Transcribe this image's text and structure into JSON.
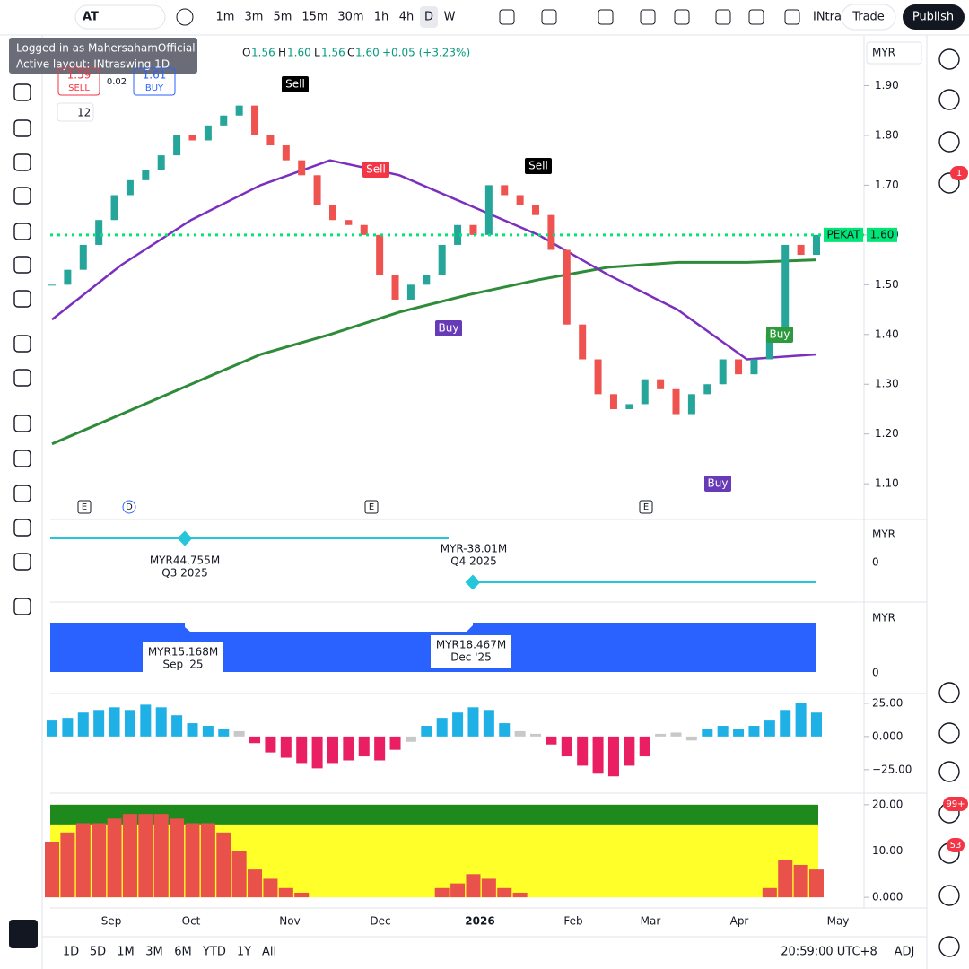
{
  "toolbar": {
    "symbol": "AT",
    "intervals": [
      "1m",
      "3m",
      "5m",
      "15m",
      "30m",
      "1h",
      "4h",
      "D",
      "W"
    ],
    "layout": "INtra",
    "trade": "Trade",
    "publish": "Publish"
  },
  "login": {
    "user": "Logged in as MahersahamOfficial",
    "layout": "Active layout: INtraswing 1D"
  },
  "legend": {
    "o_label": "O",
    "o": "1.56",
    "h_label": "H",
    "h": "1.60",
    "l_label": "L",
    "l": "1.56",
    "c_label": "C",
    "c": "1.60",
    "change": "+0.05 (+3.23%)",
    "sell_price": "1.59",
    "sell": "SELL",
    "spread": "0.02",
    "buy_price": "1.61",
    "buy": "BUY",
    "indicator_count": "12"
  },
  "chart_data": {
    "type": "candlestick",
    "currency": "MYR",
    "up_color": "#26a69a",
    "down_color": "#ef5350",
    "closes": [
      1.5,
      1.53,
      1.58,
      1.63,
      1.68,
      1.71,
      1.73,
      1.76,
      1.8,
      1.79,
      1.82,
      1.84,
      1.86,
      1.8,
      1.78,
      1.75,
      1.72,
      1.66,
      1.63,
      1.62,
      1.6,
      1.52,
      1.47,
      1.5,
      1.52,
      1.58,
      1.62,
      1.6,
      1.7,
      1.68,
      1.66,
      1.64,
      1.57,
      1.42,
      1.35,
      1.28,
      1.25,
      1.26,
      1.31,
      1.29,
      1.24,
      1.28,
      1.3,
      1.35,
      1.32,
      1.35,
      1.4,
      1.58,
      1.56,
      1.6
    ],
    "ma200": [
      1.18,
      1.24,
      1.3,
      1.36,
      1.4,
      1.445,
      1.48,
      1.51,
      1.535,
      1.545,
      1.545,
      1.55
    ],
    "ma200_color": "#2e8b3a",
    "ma50": [
      1.43,
      1.54,
      1.63,
      1.7,
      1.75,
      1.72,
      1.66,
      1.6,
      1.52,
      1.45,
      1.35,
      1.36
    ],
    "ma50_color": "#7b2fbf",
    "ylim": [
      1.03,
      2.0
    ],
    "yticks": [
      {
        "value": 1.1,
        "label": "1.10"
      },
      {
        "value": 1.2,
        "label": "1.20"
      },
      {
        "value": 1.3,
        "label": "1.30"
      },
      {
        "value": 1.4,
        "label": "1.40"
      },
      {
        "value": 1.5,
        "label": "1.50"
      },
      {
        "value": 1.6,
        "label": "1.60"
      },
      {
        "value": 1.7,
        "label": "1.70"
      },
      {
        "value": 1.8,
        "label": "1.80"
      },
      {
        "value": 1.9,
        "label": "1.90"
      }
    ],
    "last_label": "PEKAT",
    "last_value": {
      "value": 1.6,
      "label": "1.60"
    },
    "signals": [
      "Sell",
      "Sell",
      "Sell",
      "Buy",
      "Buy",
      "Buy"
    ],
    "markers": [
      "E",
      "D",
      "E",
      "E"
    ],
    "x_labels": [
      "Sep",
      "Oct",
      "Nov",
      "Dec",
      "2026",
      "Feb",
      "Mar",
      "Apr",
      "May"
    ]
  },
  "earnings": {
    "currency": "MYR",
    "zero": "0",
    "points": [
      {
        "value": "MYR44.755M",
        "period": "Q3 2025"
      },
      {
        "value": "MYR-38.01M",
        "period": "Q4 2025"
      }
    ]
  },
  "revenue": {
    "currency": "MYR",
    "zero": "0",
    "points": [
      {
        "value": "MYR15.168M",
        "period": "Sep '25"
      },
      {
        "value": "MYR18.467M",
        "period": "Dec '25"
      }
    ]
  },
  "momentum": {
    "values": [
      12,
      14,
      18,
      20,
      22,
      20,
      24,
      22,
      16,
      10,
      8,
      6,
      4,
      -5,
      -12,
      -16,
      -20,
      -24,
      -20,
      -18,
      -15,
      -18,
      -10,
      -4,
      8,
      14,
      18,
      22,
      20,
      10,
      4,
      2,
      -6,
      -15,
      -22,
      -28,
      -30,
      -22,
      -15,
      2,
      3,
      -3,
      6,
      8,
      6,
      8,
      12,
      20,
      25,
      18
    ],
    "pos_color": "#1fb0e6",
    "neg_color": "#e91e63",
    "flat_color": "#c8c8c8",
    "ylim": [
      -42,
      31
    ],
    "yticks": [
      {
        "value": 25,
        "label": "25.00"
      },
      {
        "value": 0,
        "label": "0.000"
      },
      {
        "value": -25,
        "label": "−25.00"
      }
    ]
  },
  "strength": {
    "values": [
      12,
      14,
      16,
      16,
      17,
      18,
      18,
      18,
      17,
      16,
      16,
      14,
      10,
      6,
      4,
      2,
      1,
      0,
      0,
      0,
      0,
      0,
      0,
      0,
      0,
      2,
      3,
      5,
      4,
      2,
      1,
      0,
      0,
      0,
      0,
      0,
      0,
      0,
      0,
      0,
      0,
      0,
      0,
      0,
      0,
      0,
      2,
      8,
      7,
      6
    ],
    "color": "#e8524a",
    "ylim": [
      -2.3,
      22.1
    ],
    "yticks": [
      {
        "value": 20,
        "label": "20.00"
      },
      {
        "value": 10,
        "label": "10.00"
      },
      {
        "value": 0,
        "label": "0.000"
      }
    ]
  },
  "bottom": {
    "ranges": [
      "1D",
      "5D",
      "1M",
      "3M",
      "6M",
      "YTD",
      "1Y",
      "All"
    ],
    "time": "20:59:00 UTC+8",
    "adj": "ADJ"
  },
  "badges": [
    "1",
    "99+",
    "53"
  ]
}
